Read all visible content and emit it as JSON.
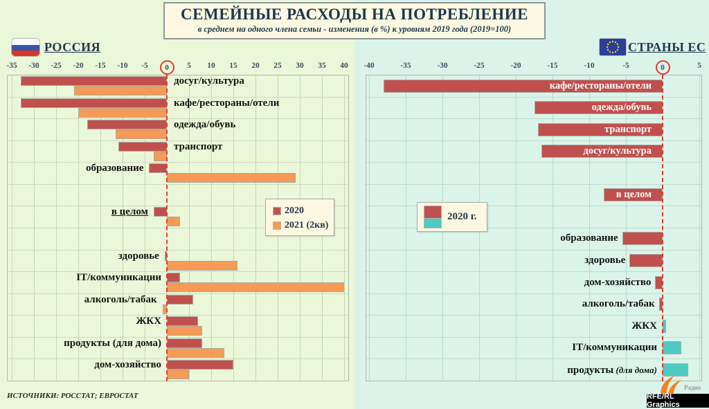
{
  "title": {
    "main": "СЕМЕЙНЫЕ РАСХОДЫ НА ПОТРЕБЛЕНИЕ",
    "sub": "в среднем на одного члена семьи - изменения (в %) к уровням 2019 года (2019=100)"
  },
  "footer": {
    "sources": "ИСТОЧНИКИ: РОССТАТ; ЕВРОСТАТ",
    "radio": "Радио",
    "credit": "RFE/RL Graphics"
  },
  "colors": {
    "red_2020": "#c0504d",
    "orange_2021": "#f59b55",
    "cyan_positive": "#4fcac2",
    "zero_line_red": "#e8392e",
    "left_bg": "#ebf7d9",
    "right_bg": "#dbf4ea",
    "title_navy": "#1c3850",
    "panel_cream": "#fdf8e2"
  },
  "chart_data": [
    {
      "type": "bar",
      "orientation": "horizontal",
      "title": "РОССИЯ",
      "flag": "russia-flag",
      "unit": "% change vs 2019",
      "axis": {
        "min": -35,
        "max": 40,
        "step": 5,
        "zero_circled": true
      },
      "grid": "dotted-vertical",
      "legend_position": "middle-right",
      "series_names": [
        "2020",
        "2021 (2кв)"
      ],
      "series_colors": [
        "#c0504d",
        "#f59b55"
      ],
      "rows": [
        {
          "label": "досуг/культура",
          "row": 0,
          "v2020": -33,
          "v2021": -21,
          "label_side": "right"
        },
        {
          "label": "кафе/рестораны/отели",
          "row": 1,
          "v2020": -33,
          "v2021": -20,
          "label_side": "right"
        },
        {
          "label": "одежда/обувь",
          "row": 2,
          "v2020": -18,
          "v2021": -11.5,
          "label_side": "right"
        },
        {
          "label": "транспорт",
          "row": 3,
          "v2020": -11,
          "v2021": -3,
          "label_side": "right"
        },
        {
          "label": "образование",
          "row": 4,
          "v2020": -4,
          "v2021": 29,
          "label_side": "left"
        },
        {
          "label": "в целом",
          "row": 6,
          "v2020": -3,
          "v2021": 3,
          "label_side": "left",
          "underline": true
        },
        {
          "label": "здоровье",
          "row": 8,
          "v2020": -0.5,
          "v2021": 16,
          "label_side": "left"
        },
        {
          "label": "IT/коммуникации",
          "row": 9,
          "v2020": 3,
          "v2021": 40,
          "label_side": "left"
        },
        {
          "label": "алкоголь/табак",
          "row": 10,
          "v2020": 6,
          "v2021": -1,
          "label_side": "left"
        },
        {
          "label": "ЖКХ",
          "row": 11,
          "v2020": 7,
          "v2021": 8,
          "label_side": "left"
        },
        {
          "label": "продукты (для дома)",
          "row": 12,
          "v2020": 8,
          "v2021": 13,
          "label_side": "left"
        },
        {
          "label": "дом-хозяйство",
          "row": 13,
          "v2020": 15,
          "v2021": 5,
          "label_side": "left"
        }
      ]
    },
    {
      "type": "bar",
      "orientation": "horizontal",
      "title": "СТРАНЫ ЕС",
      "flag": "eu-flag",
      "unit": "% change vs 2019",
      "axis": {
        "min": -40,
        "max": 5,
        "step": 5,
        "zero_circled": true
      },
      "grid": "dotted-vertical",
      "legend_position": "middle-left",
      "series_names": [
        "2020 г."
      ],
      "negative_color": "#c0504d",
      "positive_color": "#4fcac2",
      "rows": [
        {
          "label": "кафе/рестораны/отели",
          "row": 0,
          "value": -38,
          "label_inside": true
        },
        {
          "label": "одежда/обувь",
          "row": 1,
          "value": -17.5,
          "label_inside": true
        },
        {
          "label": "транспорт",
          "row": 2,
          "value": -17,
          "label_inside": true
        },
        {
          "label": "досуг/культура",
          "row": 3,
          "value": -16.5,
          "label_inside": true
        },
        {
          "label": "в целом",
          "row": 5,
          "value": -8,
          "label_inside": true
        },
        {
          "label": "образование",
          "row": 7,
          "value": -5.5,
          "label_inside": false
        },
        {
          "label": "здоровье",
          "row": 8,
          "value": -4.5,
          "label_inside": false
        },
        {
          "label": "дом-хозяйство",
          "row": 9,
          "value": -1,
          "label_inside": false
        },
        {
          "label": "алкоголь/табак",
          "row": 10,
          "value": -0.5,
          "label_inside": false
        },
        {
          "label": "ЖКХ",
          "row": 11,
          "value": 0.5,
          "label_inside": false
        },
        {
          "label": "IT/коммуникации",
          "row": 12,
          "value": 2.5,
          "label_inside": false
        },
        {
          "label": "продукты",
          "label_note": "(для дома)",
          "row": 13,
          "value": 3.5,
          "label_inside": false
        }
      ]
    }
  ]
}
